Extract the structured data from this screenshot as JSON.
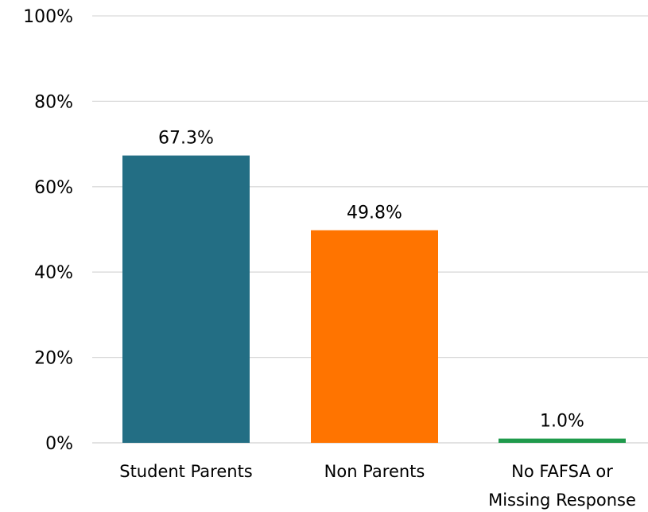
{
  "chart_data": {
    "type": "bar",
    "categories": [
      "Student Parents",
      "Non Parents",
      "No FAFSA or Missing Response"
    ],
    "category_lines": [
      [
        "Student Parents"
      ],
      [
        "Non Parents"
      ],
      [
        "No FAFSA or",
        "Missing Response"
      ]
    ],
    "values": [
      67.3,
      49.8,
      1.0
    ],
    "data_labels": [
      "67.3%",
      "49.8%",
      "1.0%"
    ],
    "colors": [
      "#236e84",
      "#ff7400",
      "#1f9a4c"
    ],
    "ylim": [
      0,
      100
    ],
    "yticks": [
      0,
      20,
      40,
      60,
      80,
      100
    ],
    "ytick_labels": [
      "0%",
      "20%",
      "40%",
      "60%",
      "80%",
      "100%"
    ],
    "grid": true,
    "gridline_color": "#d9d9d9",
    "title": "",
    "xlabel": "",
    "ylabel": ""
  }
}
